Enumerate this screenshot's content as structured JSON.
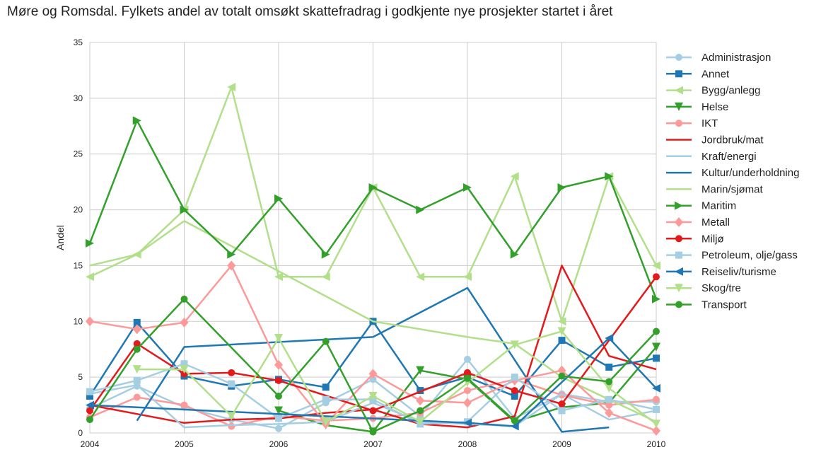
{
  "chart_data": {
    "type": "line",
    "title": "Møre og Romsdal. Fylkets andel av totalt omsøkt skattefradrag i godkjente nye prosjekter startet i året",
    "xlabel": "",
    "ylabel": "Andel",
    "xlim": [
      2004,
      2010
    ],
    "ylim": [
      0,
      35
    ],
    "x_ticks": [
      "2004",
      "2005",
      "2006",
      "2007",
      "2008",
      "2009",
      "2010"
    ],
    "y_ticks": [
      "0",
      "5",
      "10",
      "15",
      "20",
      "25",
      "30",
      "35"
    ],
    "grid": true,
    "legend_position": "right",
    "series": [
      {
        "name": "Administrasjon",
        "color": "#a6cee3",
        "marker": "circle",
        "x": [
          2004,
          2004.5,
          2005,
          2005.5,
          2006,
          2006.5,
          2007,
          2007.5,
          2008,
          2008.5,
          2009,
          2009.5,
          2010
        ],
        "y": [
          2.2,
          4.2,
          2.3,
          1.2,
          0.4,
          2.7,
          4.8,
          1.5,
          6.6,
          1.3,
          3.5,
          2.8,
          2.8
        ]
      },
      {
        "name": "Annet",
        "color": "#1f78b4",
        "marker": "square",
        "x": [
          2004,
          2004.5,
          2005,
          2005.5,
          2006,
          2006.5,
          2007,
          2007.5,
          2008,
          2008.5,
          2009,
          2009.5,
          2010
        ],
        "y": [
          3.3,
          9.9,
          5.1,
          4.2,
          4.8,
          4.1,
          10.0,
          3.8,
          5.0,
          3.3,
          8.3,
          5.9,
          6.7
        ]
      },
      {
        "name": "Bygg/anlegg",
        "color": "#b2df8a",
        "marker": "triangle-left",
        "x": [
          2004,
          2004.5,
          2005,
          2005.5,
          2006,
          2006.5,
          2007,
          2007.5,
          2008,
          2008.5,
          2009,
          2009.5,
          2010
        ],
        "y": [
          14.0,
          16.0,
          20.0,
          31.0,
          14.0,
          14.0,
          22.0,
          14.0,
          14.0,
          23.0,
          10.0,
          23.0,
          15.0
        ]
      },
      {
        "name": "Helse",
        "color": "#33a02c",
        "marker": "triangle-down",
        "x": [
          2006,
          2006.5,
          2007,
          2007.5,
          2008,
          2008.5,
          2009,
          2009.5,
          2010
        ],
        "y": [
          2.0,
          0.7,
          0.1,
          5.6,
          4.8,
          1.0,
          2.3,
          2.7,
          7.7
        ]
      },
      {
        "name": "IKT",
        "color": "#fb9a99",
        "marker": "circle",
        "x": [
          2004,
          2004.5,
          2005,
          2005.5,
          2006,
          2006.5,
          2007,
          2007.5,
          2008,
          2008.5,
          2009,
          2009.5,
          2010
        ],
        "y": [
          1.4,
          3.2,
          2.5,
          0.6,
          1.5,
          1.1,
          1.3,
          1.8,
          3.8,
          4.8,
          3.4,
          2.5,
          3.0
        ]
      },
      {
        "name": "Jordbruk/mat",
        "color": "#e31a1c",
        "marker": "none",
        "x": [
          2004,
          2004.5,
          2005,
          2005.5,
          2006,
          2006.5,
          2007,
          2007.5,
          2008,
          2008.5,
          2009,
          2009.5,
          2010
        ],
        "y": [
          2.5,
          1.7,
          0.9,
          1.2,
          1.3,
          1.8,
          2.1,
          0.8,
          0.5,
          1.5,
          15.0,
          6.9,
          5.7
        ]
      },
      {
        "name": "Kraft/energi",
        "color": "#a6cee3",
        "marker": "none",
        "x": [
          2004,
          2004.5,
          2005,
          2005.5,
          2006,
          2006.5,
          2007,
          2007.5,
          2008,
          2008.5,
          2009,
          2009.5,
          2010
        ],
        "y": [
          3.5,
          4.3,
          0.5,
          0.7,
          0.8,
          1.0,
          2.7,
          1.0,
          0.8,
          0.6,
          3.5,
          1.2,
          2.0
        ]
      },
      {
        "name": "Kultur/underholdning",
        "color": "#1f78b4",
        "marker": "none",
        "x": [
          2004.5,
          2005,
          2007,
          2008,
          2009,
          2009.5
        ],
        "y": [
          1.1,
          7.7,
          8.6,
          13.0,
          0.1,
          0.5
        ]
      },
      {
        "name": "Marin/sjømat",
        "color": "#b2df8a",
        "marker": "none",
        "x": [
          2004,
          2004.5,
          2005,
          2007,
          2008,
          2008.5,
          2009,
          2009.5,
          2010
        ],
        "y": [
          15.0,
          16.0,
          19.0,
          10.0,
          8.6,
          8.0,
          5.0,
          3.0,
          1.0
        ]
      },
      {
        "name": "Maritim",
        "color": "#33a02c",
        "marker": "triangle-right",
        "x": [
          2004,
          2004.5,
          2005,
          2005.5,
          2006,
          2006.5,
          2007,
          2007.5,
          2008,
          2008.5,
          2009,
          2009.5,
          2010
        ],
        "y": [
          17.0,
          28.0,
          20.0,
          16.0,
          21.0,
          16.0,
          22.0,
          20.0,
          22.0,
          16.0,
          22.0,
          23.0,
          12.0
        ]
      },
      {
        "name": "Metall",
        "color": "#fb9a99",
        "marker": "diamond",
        "x": [
          2004,
          2004.5,
          2005,
          2005.5,
          2006,
          2006.5,
          2007,
          2007.5,
          2008,
          2008.5,
          2009,
          2009.5,
          2010
        ],
        "y": [
          10.0,
          9.3,
          9.9,
          15.0,
          6.1,
          0.8,
          5.3,
          2.9,
          2.7,
          4.7,
          5.6,
          1.8,
          0.2
        ]
      },
      {
        "name": "Miljø",
        "color": "#e31a1c",
        "marker": "circle",
        "x": [
          2004,
          2004.5,
          2005,
          2005.5,
          2006,
          2007,
          2008,
          2008.5,
          2009,
          2010
        ],
        "y": [
          2.0,
          8.0,
          5.3,
          5.4,
          4.7,
          2.0,
          5.4,
          3.8,
          2.6,
          14.0
        ]
      },
      {
        "name": "Petroleum, olje/gass",
        "color": "#a6cee3",
        "marker": "square",
        "x": [
          2004,
          2004.5,
          2005,
          2005.5,
          2006,
          2006.5,
          2007,
          2007.5,
          2008,
          2008.5,
          2009,
          2009.5,
          2010
        ],
        "y": [
          3.7,
          4.7,
          6.2,
          4.4,
          1.3,
          3.0,
          3.0,
          0.8,
          1.0,
          5.0,
          2.0,
          3.0,
          2.1
        ]
      },
      {
        "name": "Reiseliv/turisme",
        "color": "#1f78b4",
        "marker": "triangle-left",
        "x": [
          2004,
          2008,
          2008.5,
          2009.5,
          2010
        ],
        "y": [
          2.5,
          0.9,
          0.6,
          8.5,
          4.0
        ]
      },
      {
        "name": "Skog/tre",
        "color": "#b2df8a",
        "marker": "triangle-down",
        "x": [
          2004.5,
          2005,
          2005.5,
          2006,
          2006.5,
          2007,
          2007.5,
          2008,
          2008.5,
          2009,
          2009.5,
          2010
        ],
        "y": [
          5.7,
          5.7,
          1.5,
          8.5,
          1.0,
          3.3,
          1.0,
          4.5,
          7.9,
          9.1,
          4.0,
          0.8
        ]
      },
      {
        "name": "Transport",
        "color": "#33a02c",
        "marker": "circle",
        "x": [
          2004,
          2004.5,
          2005,
          2006,
          2006.5,
          2007,
          2007.5,
          2008,
          2008.5,
          2009,
          2009.5,
          2010
        ],
        "y": [
          1.2,
          7.5,
          12.0,
          3.3,
          8.2,
          0.1,
          2.0,
          4.9,
          1.1,
          5.1,
          4.6,
          9.1
        ]
      }
    ]
  }
}
